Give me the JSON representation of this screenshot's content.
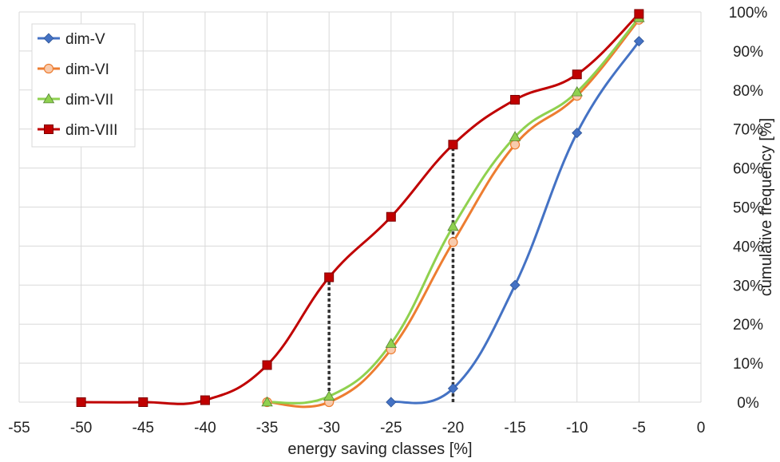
{
  "chart_data": {
    "type": "line",
    "xlabel": "energy saving classes  [%]",
    "ylabel": "cumulative frequency  [%]",
    "xlim": [
      -55,
      0
    ],
    "ylim": [
      0,
      100
    ],
    "x_ticks": [
      "-55",
      "-50",
      "-45",
      "-40",
      "-35",
      "-30",
      "-25",
      "-20",
      "-15",
      "-10",
      "-5",
      "0"
    ],
    "y_ticks": [
      "0%",
      "10%",
      "20%",
      "30%",
      "40%",
      "50%",
      "60%",
      "70%",
      "80%",
      "90%",
      "100%"
    ],
    "grid": true,
    "y_axis_side": "right",
    "legend_position": "top-left",
    "series": [
      {
        "name": "dim-V",
        "color": "#4472c4",
        "marker": "diamond",
        "x": [
          -25,
          -20,
          -15,
          -10,
          -5
        ],
        "y": [
          0,
          3.5,
          30,
          69,
          92.5
        ]
      },
      {
        "name": "dim-VI",
        "color": "#ed7d31",
        "marker": "circle",
        "x": [
          -35,
          -30,
          -25,
          -20,
          -15,
          -10,
          -5
        ],
        "y": [
          0,
          0,
          13.5,
          41,
          66,
          78.5,
          98
        ]
      },
      {
        "name": "dim-VII",
        "color": "#8fd14f",
        "marker": "triangle",
        "x": [
          -35,
          -30,
          -25,
          -20,
          -15,
          -10,
          -5
        ],
        "y": [
          0,
          1.5,
          15,
          45,
          68,
          79.5,
          98.5
        ]
      },
      {
        "name": "dim-VIII",
        "color": "#c00000",
        "marker": "square",
        "x": [
          -50,
          -45,
          -40,
          -35,
          -30,
          -25,
          -20,
          -15,
          -10,
          -5
        ],
        "y": [
          0,
          0,
          0.5,
          9.5,
          32,
          47.5,
          66,
          77.5,
          84,
          99.5
        ]
      }
    ],
    "reference_lines": [
      {
        "x": -30,
        "y_from": 0,
        "y_to": 32,
        "style": "dotted",
        "color": "#333333"
      },
      {
        "x": -20,
        "y_from": 0,
        "y_to": 66,
        "style": "dotted",
        "color": "#333333"
      }
    ]
  }
}
